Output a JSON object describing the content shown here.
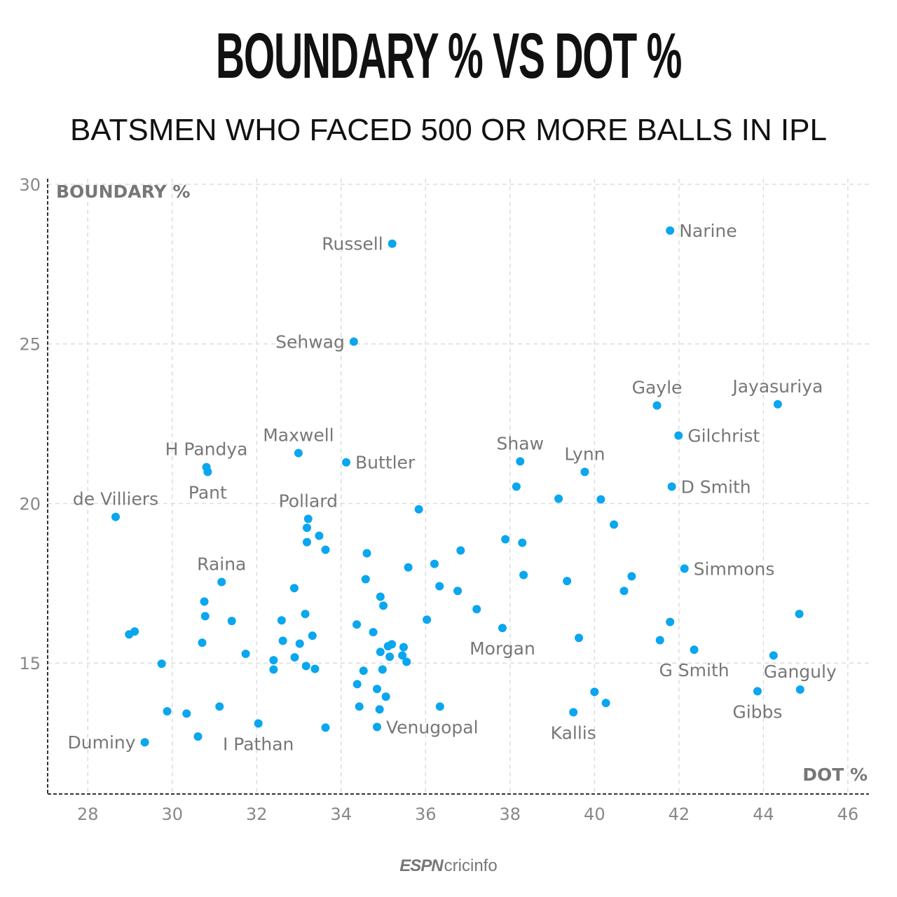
{
  "title": "BOUNDARY % VS DOT %",
  "subtitle": "BATSMEN WHO FACED 500 OR MORE BALLS IN IPL",
  "logo": {
    "brand": "ESPN",
    "text": "cricinfo"
  },
  "colors": {
    "point": "#0aa6ef",
    "grid": "#dddddd",
    "axis": "#333333",
    "label": "#777777"
  },
  "chart_data": {
    "type": "scatter",
    "title": "BOUNDARY % VS DOT %",
    "xlabel": "DOT %",
    "ylabel": "BOUNDARY %",
    "xlim": [
      27.05,
      46.5
    ],
    "ylim": [
      10.9,
      30
    ],
    "xticks": [
      28,
      30,
      32,
      34,
      36,
      38,
      40,
      42,
      44,
      46
    ],
    "yticks": [
      15,
      20,
      25,
      30
    ],
    "grid": true,
    "points": [
      {
        "x": 35.21,
        "y": 28.14,
        "label": "Russell"
      },
      {
        "x": 41.79,
        "y": 28.55,
        "label": "Narine"
      },
      {
        "x": 34.3,
        "y": 25.07,
        "label": "Sehwag"
      },
      {
        "x": 41.48,
        "y": 23.07,
        "label": "Gayle"
      },
      {
        "x": 44.34,
        "y": 23.11,
        "label": "Jayasuriya"
      },
      {
        "x": 41.99,
        "y": 22.13,
        "label": "Gilchrist"
      },
      {
        "x": 32.99,
        "y": 21.58,
        "label": "Maxwell"
      },
      {
        "x": 34.12,
        "y": 21.29,
        "label": "Buttler"
      },
      {
        "x": 38.24,
        "y": 21.32,
        "label": "Shaw"
      },
      {
        "x": 39.77,
        "y": 20.99,
        "label": "Lynn"
      },
      {
        "x": 30.81,
        "y": 21.14,
        "label": "H Pandya"
      },
      {
        "x": 30.84,
        "y": 20.99,
        "label": "Pant"
      },
      {
        "x": 41.83,
        "y": 20.53,
        "label": "D Smith"
      },
      {
        "x": 38.15,
        "y": 20.53
      },
      {
        "x": 39.15,
        "y": 20.15
      },
      {
        "x": 40.15,
        "y": 20.13
      },
      {
        "x": 28.66,
        "y": 19.58,
        "label": "de Villiers"
      },
      {
        "x": 33.22,
        "y": 19.52,
        "label": "Pollard"
      },
      {
        "x": 35.84,
        "y": 19.82
      },
      {
        "x": 40.46,
        "y": 19.34
      },
      {
        "x": 33.19,
        "y": 19.24
      },
      {
        "x": 33.48,
        "y": 18.99
      },
      {
        "x": 33.19,
        "y": 18.79
      },
      {
        "x": 33.63,
        "y": 18.55
      },
      {
        "x": 37.89,
        "y": 18.88
      },
      {
        "x": 38.29,
        "y": 18.77
      },
      {
        "x": 36.83,
        "y": 18.53
      },
      {
        "x": 34.61,
        "y": 18.44
      },
      {
        "x": 35.59,
        "y": 18.0
      },
      {
        "x": 36.21,
        "y": 18.11
      },
      {
        "x": 42.13,
        "y": 17.96,
        "label": "Simmons"
      },
      {
        "x": 31.17,
        "y": 17.54,
        "label": "Raina"
      },
      {
        "x": 34.58,
        "y": 17.63
      },
      {
        "x": 38.32,
        "y": 17.76
      },
      {
        "x": 39.35,
        "y": 17.57
      },
      {
        "x": 40.88,
        "y": 17.72
      },
      {
        "x": 36.33,
        "y": 17.41
      },
      {
        "x": 36.76,
        "y": 17.26
      },
      {
        "x": 40.7,
        "y": 17.26
      },
      {
        "x": 32.89,
        "y": 17.35
      },
      {
        "x": 34.93,
        "y": 17.08
      },
      {
        "x": 35.0,
        "y": 16.8
      },
      {
        "x": 30.76,
        "y": 16.93
      },
      {
        "x": 37.21,
        "y": 16.69
      },
      {
        "x": 44.85,
        "y": 16.54
      },
      {
        "x": 33.15,
        "y": 16.54
      },
      {
        "x": 30.78,
        "y": 16.47
      },
      {
        "x": 31.41,
        "y": 16.32
      },
      {
        "x": 32.59,
        "y": 16.34
      },
      {
        "x": 36.03,
        "y": 16.36
      },
      {
        "x": 34.37,
        "y": 16.21
      },
      {
        "x": 41.79,
        "y": 16.29
      },
      {
        "x": 37.82,
        "y": 16.1,
        "label": "Morgan"
      },
      {
        "x": 28.98,
        "y": 15.9
      },
      {
        "x": 29.11,
        "y": 15.99
      },
      {
        "x": 34.76,
        "y": 15.97
      },
      {
        "x": 33.32,
        "y": 15.86
      },
      {
        "x": 39.63,
        "y": 15.79
      },
      {
        "x": 32.62,
        "y": 15.7
      },
      {
        "x": 30.71,
        "y": 15.64
      },
      {
        "x": 33.02,
        "y": 15.61
      },
      {
        "x": 41.55,
        "y": 15.72
      },
      {
        "x": 35.2,
        "y": 15.59
      },
      {
        "x": 35.11,
        "y": 15.53
      },
      {
        "x": 35.48,
        "y": 15.5
      },
      {
        "x": 42.36,
        "y": 15.42,
        "label": "G Smith"
      },
      {
        "x": 31.74,
        "y": 15.29
      },
      {
        "x": 34.93,
        "y": 15.35
      },
      {
        "x": 35.45,
        "y": 15.24
      },
      {
        "x": 35.15,
        "y": 15.2
      },
      {
        "x": 32.9,
        "y": 15.18
      },
      {
        "x": 44.24,
        "y": 15.24
      },
      {
        "x": 32.4,
        "y": 15.09
      },
      {
        "x": 35.55,
        "y": 15.04
      },
      {
        "x": 29.75,
        "y": 14.98
      },
      {
        "x": 33.17,
        "y": 14.91
      },
      {
        "x": 33.38,
        "y": 14.82
      },
      {
        "x": 32.4,
        "y": 14.8
      },
      {
        "x": 34.53,
        "y": 14.76
      },
      {
        "x": 34.98,
        "y": 14.8
      },
      {
        "x": 34.38,
        "y": 14.34
      },
      {
        "x": 34.85,
        "y": 14.19
      },
      {
        "x": 35.06,
        "y": 13.95
      },
      {
        "x": 43.86,
        "y": 14.12,
        "label": "Gibbs"
      },
      {
        "x": 44.87,
        "y": 14.17,
        "label": "Ganguly"
      },
      {
        "x": 40.0,
        "y": 14.1
      },
      {
        "x": 40.27,
        "y": 13.75
      },
      {
        "x": 34.43,
        "y": 13.64
      },
      {
        "x": 34.91,
        "y": 13.55
      },
      {
        "x": 31.12,
        "y": 13.64
      },
      {
        "x": 36.34,
        "y": 13.64
      },
      {
        "x": 29.88,
        "y": 13.49
      },
      {
        "x": 30.34,
        "y": 13.42
      },
      {
        "x": 39.5,
        "y": 13.46,
        "label": "Kallis"
      },
      {
        "x": 32.04,
        "y": 13.11,
        "label": "I Pathan"
      },
      {
        "x": 33.63,
        "y": 12.98
      },
      {
        "x": 34.85,
        "y": 13.0,
        "label": "Venugopal"
      },
      {
        "x": 30.61,
        "y": 12.7
      },
      {
        "x": 29.35,
        "y": 12.52,
        "label": "Duminy"
      }
    ]
  }
}
